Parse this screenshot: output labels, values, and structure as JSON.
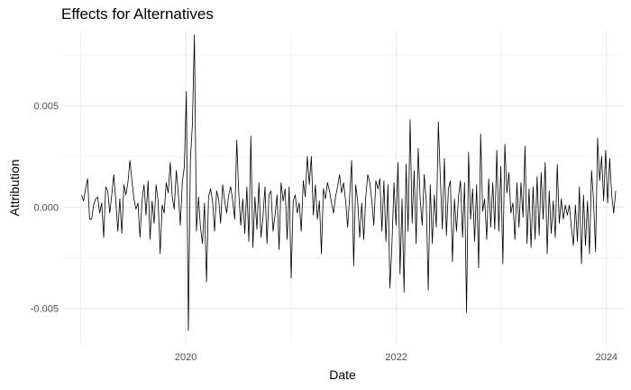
{
  "chart_data": {
    "type": "line",
    "title": "Effects for Alternatives",
    "xlabel": "Date",
    "ylabel": "Attribution",
    "xlim": [
      "2018-11-01",
      "2024-03-01"
    ],
    "ylim": [
      -0.0068,
      0.0087
    ],
    "x_ticks": [
      {
        "label": "2020",
        "date": "2020-01-01"
      },
      {
        "label": "2022",
        "date": "2022-01-01"
      },
      {
        "label": "2024",
        "date": "2024-01-01"
      }
    ],
    "x_minor_ticks": [
      "2019-01-01",
      "2021-01-01",
      "2023-01-01"
    ],
    "y_ticks": [
      {
        "label": "-0.005",
        "value": -0.005
      },
      {
        "label": "0.000",
        "value": 0.0
      },
      {
        "label": "0.005",
        "value": 0.005
      }
    ],
    "y_minor_ticks": [
      -0.0025,
      0.0025,
      0.0075
    ],
    "grid": true,
    "line_color": "#000000",
    "series": [
      {
        "start_date": "2019-01-04",
        "step_days": 7,
        "values": [
          0.0006,
          0.0003,
          0.0009,
          0.0014,
          -0.0006,
          -0.0006,
          0.0001,
          0.0004,
          0.0005,
          -0.0003,
          0.0002,
          -0.0015,
          0.001,
          0.0008,
          -0.0003,
          0.0006,
          0.0016,
          0.0003,
          -0.0012,
          0.0004,
          -0.0013,
          0.0011,
          0.0006,
          0.0012,
          0.0023,
          0.0013,
          0.0004,
          -0.0001,
          0.0002,
          -0.0015,
          0.0003,
          0.0011,
          -0.0004,
          0.0013,
          -0.0016,
          0.0003,
          -0.0008,
          0.0011,
          0.0003,
          -0.0023,
          0.0001,
          -0.0003,
          0.0012,
          0.0007,
          0.0022,
          0.0005,
          -0.0001,
          0.0018,
          0.0007,
          -0.0009,
          0.0012,
          0.002,
          0.0057,
          -0.0061,
          0.0023,
          0.0041,
          0.0085,
          -0.0012,
          0.0005,
          -0.001,
          -0.0018,
          0.0002,
          -0.0037,
          0.0005,
          0.0009,
          0.0003,
          -0.0012,
          0.0008,
          0.0004,
          -0.0008,
          0.0011,
          0.0003,
          -0.0003,
          0.0006,
          0.001,
          0.0003,
          -0.0006,
          0.0033,
          0.0007,
          -0.0009,
          0.0004,
          -0.0013,
          0.001,
          -0.0017,
          0.0035,
          -0.002,
          0.0005,
          -0.0011,
          0.0012,
          -0.0015,
          -0.0005,
          0.001,
          -0.0018,
          0.0006,
          0.0008,
          -0.0012,
          -0.0004,
          0.0006,
          -0.0021,
          0.0012,
          0.0003,
          0.0009,
          -0.0016,
          0.001,
          -0.0035,
          0.0003,
          0.0006,
          -0.0003,
          0.0002,
          -0.0012,
          0.0013,
          0.0005,
          0.0025,
          0.0011,
          0.0025,
          -0.0004,
          0.0011,
          -0.0006,
          0.0003,
          -0.0023,
          0.0009,
          0.0004,
          0.0012,
          0.0008,
          0.0002,
          -0.0003,
          0.0005,
          0.001,
          0.0016,
          0.0007,
          0.0012,
          0.0003,
          -0.001,
          0.0005,
          0.0023,
          -0.0029,
          0.0011,
          0.0003,
          -0.0015,
          0.0002,
          -0.0016,
          0.0005,
          0.0016,
          0.0012,
          0.0003,
          -0.0009,
          0.0013,
          0.0009,
          0.0014,
          -0.0012,
          0.0013,
          -0.0017,
          0.0011,
          -0.004,
          -0.0018,
          0.0012,
          -0.0009,
          0.0022,
          -0.0033,
          0.0004,
          -0.0042,
          0.0021,
          -0.0012,
          0.0043,
          -0.0008,
          0.0018,
          -0.0018,
          0.0029,
          0.0004,
          -0.0009,
          0.0016,
          0.0003,
          -0.0041,
          0.0011,
          -0.0018,
          0.0006,
          -0.001,
          0.0042,
          0.0014,
          -0.0011,
          0.0024,
          -0.0014,
          0.0009,
          0.0013,
          -0.0027,
          0.0004,
          -0.0012,
          0.0005,
          0.0013,
          -0.0015,
          0.0012,
          -0.0052,
          0.0027,
          -0.0006,
          0.0009,
          -0.0017,
          0.0011,
          -0.003,
          0.0036,
          -0.0002,
          0.0004,
          -0.0016,
          0.0014,
          -0.001,
          0.0012,
          -0.0011,
          0.0028,
          -0.0012,
          0.002,
          -0.0028,
          0.0031,
          0.0007,
          0.0017,
          -0.0003,
          0.0002,
          -0.0016,
          0.0012,
          -0.001,
          0.0012,
          -0.0005,
          0.003,
          -0.0018,
          0.0009,
          -0.002,
          0.001,
          -0.0016,
          0.0015,
          -0.0014,
          0.0017,
          -0.0006,
          0.0022,
          -0.0023,
          0.0008,
          -0.0013,
          0.0003,
          -0.0015,
          0.0021,
          -0.0008,
          0.0004,
          -0.0006,
          0.0001,
          -0.0004,
          0.0001,
          -0.001,
          -0.0019,
          0.0001,
          -0.0017,
          0.001,
          -0.0028,
          0.0006,
          -0.0019,
          0.0003,
          -0.0023,
          0.0018,
          0.0003,
          -0.0022,
          0.0034,
          0.0013,
          0.0025,
          0.0003,
          0.0028,
          0.0002,
          0.0024,
          0.0006,
          -0.0003,
          0.0008
        ]
      }
    ]
  }
}
